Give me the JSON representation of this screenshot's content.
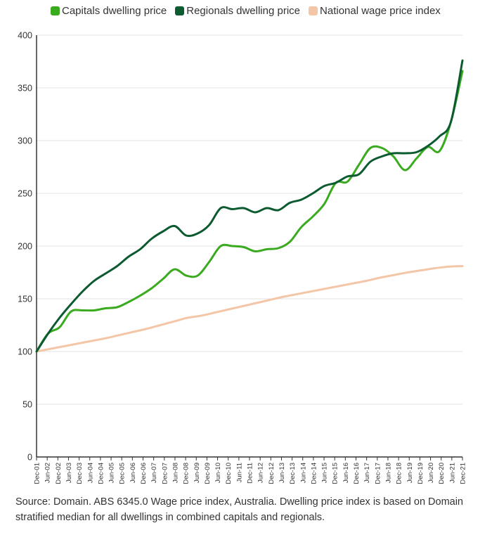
{
  "chart_data": {
    "type": "line",
    "ylim": [
      0,
      400
    ],
    "yticks": [
      0,
      50,
      100,
      150,
      200,
      250,
      300,
      350,
      400
    ],
    "grid": "horizontal",
    "legend_position": "top",
    "x_tick_labels": [
      "Dec-01",
      "Jun-02",
      "Dec-02",
      "Jun-03",
      "Dec-03",
      "Jun-04",
      "Dec-04",
      "Jun-05",
      "Dec-05",
      "Jun-06",
      "Dec-06",
      "Jun-07",
      "Dec-07",
      "Jun-08",
      "Dec-08",
      "Jun-09",
      "Dec-09",
      "Jun-10",
      "Dec-10",
      "Jun-11",
      "Dec-11",
      "Jun-12",
      "Dec-12",
      "Jun-13",
      "Dec-13",
      "Jun-14",
      "Dec-14",
      "Jun-15",
      "Dec-15",
      "Jun-16",
      "Dec-16",
      "Jun-17",
      "Dec-17",
      "Jun-18",
      "Dec-18",
      "Jun-19",
      "Dec-19",
      "Jun-20",
      "Dec-20",
      "Jun-21",
      "Dec-21"
    ],
    "series": [
      {
        "name": "Capitals dwelling price",
        "color": "#3aaa1f",
        "values": [
          100,
          117,
          123,
          138,
          139,
          139,
          141,
          142,
          147,
          153,
          160,
          169,
          178,
          172,
          172,
          185,
          200,
          200,
          199,
          195,
          197,
          198,
          204,
          218,
          228,
          240,
          260,
          261,
          277,
          293,
          293,
          285,
          272,
          283,
          294,
          290,
          318,
          366
        ]
      },
      {
        "name": "Regionals dwelling price",
        "color": "#0c5a30",
        "values": [
          100,
          117,
          132,
          145,
          157,
          167,
          174,
          181,
          190,
          197,
          207,
          214,
          219,
          210,
          212,
          220,
          236,
          235,
          236,
          232,
          236,
          234,
          241,
          244,
          250,
          257,
          260,
          266,
          268,
          280,
          285,
          288,
          288,
          289,
          295,
          304,
          318,
          376
        ]
      },
      {
        "name": "National wage price index",
        "color": "#f4c6a8",
        "values": [
          100,
          102.5,
          105,
          107.5,
          110,
          112.5,
          115.5,
          118.5,
          121.5,
          125,
          128.5,
          132,
          134,
          137,
          140,
          143,
          146,
          149,
          152,
          154.5,
          157,
          159.5,
          162,
          164.5,
          167,
          170,
          172.5,
          175,
          177,
          179,
          180.5,
          181
        ]
      }
    ]
  },
  "legend": [
    {
      "label": "Capitals dwelling price",
      "color": "#3aaa1f"
    },
    {
      "label": "Regionals dwelling price",
      "color": "#0c5a30"
    },
    {
      "label": "National wage price index",
      "color": "#f4c6a8"
    }
  ],
  "source_text": "Source: Domain. ABS 6345.0 Wage price index, Australia. Dwelling price index is based on Domain stratified median for all dwellings in combined capitals and regionals."
}
